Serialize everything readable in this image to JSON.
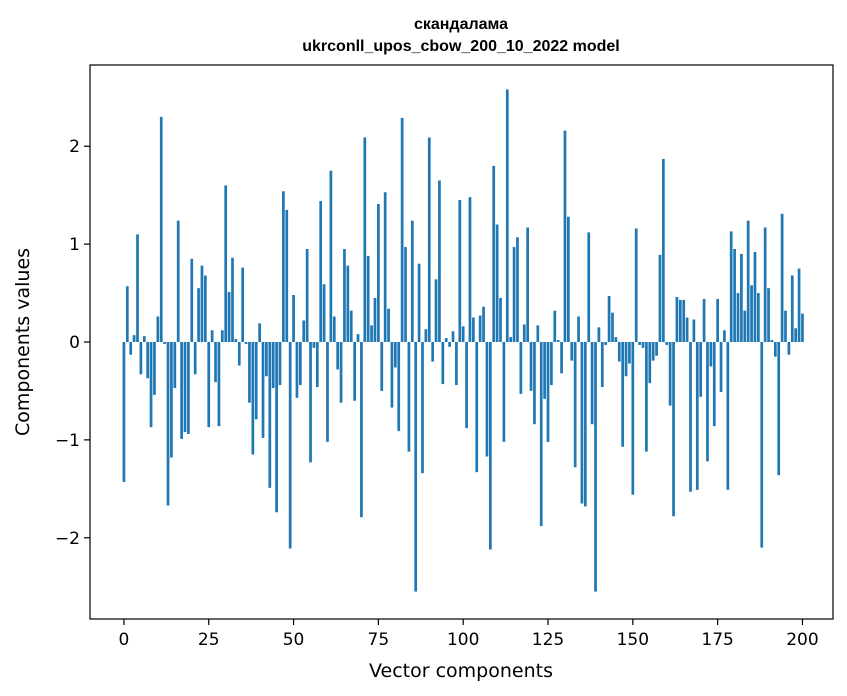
{
  "chart_data": {
    "type": "bar",
    "title": "скандалама",
    "subtitle": "ukrconll_upos_cbow_200_10_2022 model",
    "xlabel": "Vector components",
    "ylabel": "Components values",
    "xlim": [
      -10,
      209
    ],
    "ylim": [
      -2.83,
      2.83
    ],
    "x_ticks": [
      0,
      25,
      50,
      75,
      100,
      125,
      150,
      175,
      200
    ],
    "y_ticks": [
      -2,
      -1,
      0,
      1,
      2
    ],
    "grid": false,
    "bar_color": "#1f77b4",
    "values": [
      -1.43,
      0.57,
      -0.13,
      0.07,
      1.1,
      -0.33,
      0.06,
      -0.37,
      -0.87,
      -0.54,
      0.26,
      2.3,
      -0.02,
      -1.67,
      -1.18,
      -0.47,
      1.24,
      -0.99,
      -0.92,
      -0.94,
      0.85,
      -0.33,
      0.55,
      0.78,
      0.68,
      -0.87,
      0.12,
      -0.41,
      -0.86,
      0.12,
      1.6,
      0.51,
      0.86,
      0.03,
      -0.24,
      0.76,
      -0.02,
      -0.62,
      -1.15,
      -0.79,
      0.19,
      -0.98,
      -0.35,
      -1.49,
      -0.47,
      -1.74,
      -0.44,
      1.54,
      1.35,
      -2.11,
      0.48,
      -0.57,
      -0.44,
      0.22,
      0.95,
      -1.23,
      -0.06,
      -0.46,
      1.44,
      0.59,
      -1.02,
      1.75,
      0.26,
      -0.28,
      -0.62,
      0.95,
      0.78,
      0.32,
      -0.6,
      0.08,
      -1.79,
      2.09,
      0.88,
      0.17,
      0.45,
      1.41,
      -0.5,
      1.53,
      0.34,
      -0.67,
      -0.26,
      -0.91,
      2.29,
      0.97,
      -1.12,
      1.24,
      -2.55,
      0.8,
      -1.34,
      0.13,
      2.09,
      -0.2,
      0.64,
      1.65,
      -0.43,
      0.04,
      -0.05,
      0.11,
      -0.44,
      1.45,
      0.16,
      -0.88,
      1.48,
      0.25,
      -1.33,
      0.27,
      0.36,
      -1.17,
      -2.12,
      1.8,
      1.2,
      0.45,
      -1.02,
      2.58,
      0.05,
      0.97,
      1.07,
      -0.53,
      0.18,
      1.17,
      -0.5,
      -0.84,
      0.17,
      -1.88,
      -0.58,
      -1.02,
      -0.44,
      0.32,
      0.02,
      -0.32,
      2.16,
      1.28,
      -0.19,
      -1.28,
      0.26,
      -1.65,
      -1.68,
      1.12,
      -0.84,
      -2.55,
      0.15,
      -0.46,
      -0.03,
      0.47,
      0.3,
      0.05,
      -0.2,
      -1.07,
      -0.35,
      -0.22,
      -1.56,
      1.16,
      -0.03,
      -0.06,
      -1.12,
      -0.42,
      -0.19,
      -0.14,
      0.89,
      1.87,
      -0.03,
      -0.65,
      -1.78,
      0.46,
      0.43,
      0.43,
      0.25,
      -1.53,
      0.23,
      -1.51,
      -0.56,
      0.44,
      -1.22,
      -0.25,
      -0.86,
      0.44,
      -0.51,
      0.12,
      -1.51,
      1.13,
      0.95,
      0.5,
      0.9,
      0.32,
      1.24,
      0.58,
      0.92,
      0.5,
      -2.1,
      1.17,
      0.55,
      0.02,
      -0.15,
      -1.36,
      1.31,
      0.32,
      -0.13,
      0.68,
      0.14,
      0.75,
      0.29
    ]
  }
}
